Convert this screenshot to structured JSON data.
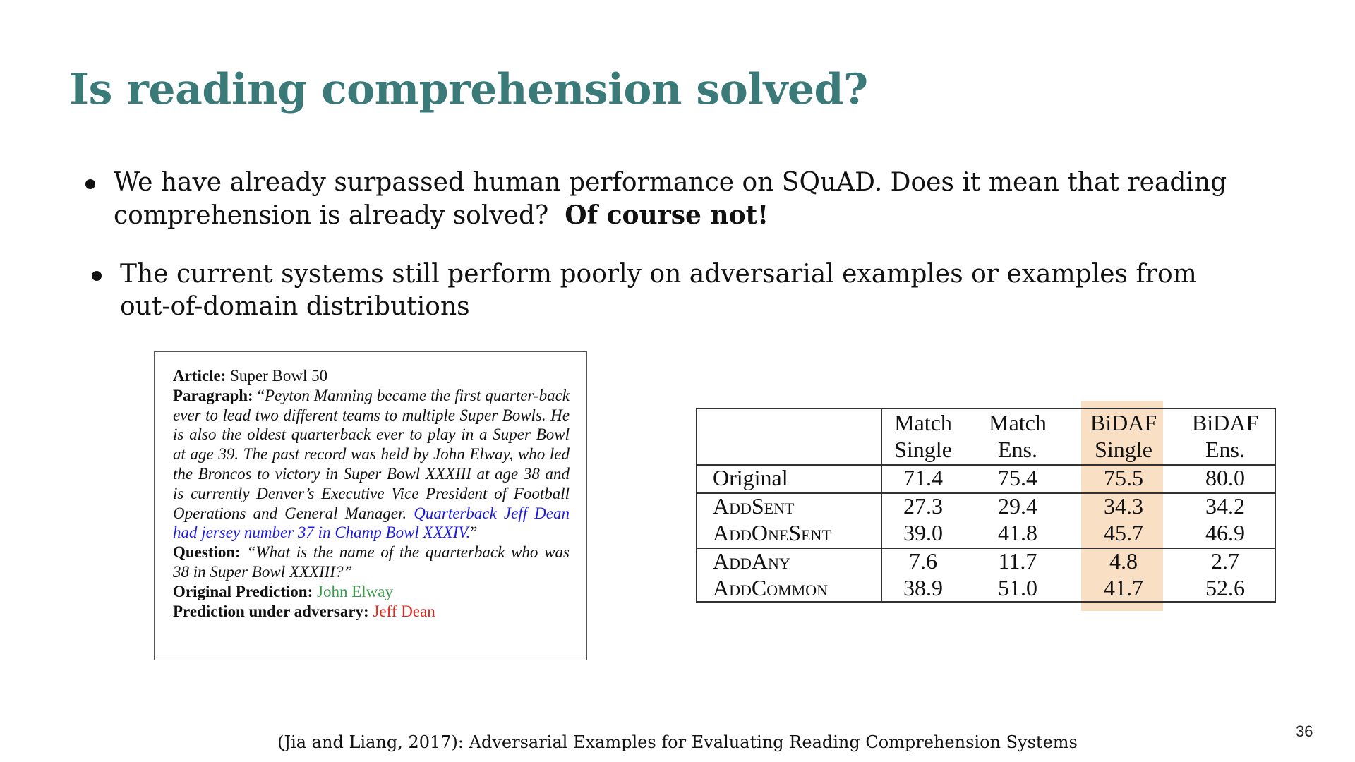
{
  "title": "Is reading comprehension solved?",
  "bullets": [
    {
      "text": "We have already surpassed human performance on SQuAD. Does it mean that reading comprehension is already solved?",
      "emphasis": "Of course not!"
    },
    {
      "text": "The current systems still perform poorly on adversarial examples or examples from out-of-domain distributions"
    }
  ],
  "example": {
    "article_label": "Article:",
    "article": "Super Bowl 50",
    "paragraph_label": "Paragraph:",
    "paragraph_open": "“",
    "paragraph": "Peyton Manning became the first quarter-back ever to lead two different teams to multiple Super Bowls. He is also the oldest quarterback ever to play in a Super Bowl at age 39. The past record was held by John Elway, who led the Broncos to victory in Super Bowl XXXIII at age 38 and is currently Denver’s Executive Vice President of Football Operations and General Manager.",
    "adversarial_sentence": "Quarterback Jeff Dean had jersey number 37 in Champ Bowl XXXIV.",
    "paragraph_close": "”",
    "question_label": "Question:",
    "question": "“What is the name of the quarterback who was 38 in Super Bowl XXXIII?”",
    "original_prediction_label": "Original Prediction:",
    "original_prediction": "John Elway",
    "adversary_prediction_label": "Prediction under adversary:",
    "adversary_prediction": "Jeff Dean"
  },
  "results_table": {
    "headers": [
      [
        "Match",
        "Single"
      ],
      [
        "Match",
        "Ens."
      ],
      [
        "BiDAF",
        "Single"
      ],
      [
        "BiDAF",
        "Ens."
      ]
    ],
    "rows": [
      {
        "label": "Original",
        "values": [
          "71.4",
          "75.4",
          "75.5",
          "80.0"
        ]
      },
      {
        "label": "AddSent",
        "values": [
          "27.3",
          "29.4",
          "34.3",
          "34.2"
        ]
      },
      {
        "label": "AddOneSent",
        "values": [
          "39.0",
          "41.8",
          "45.7",
          "46.9"
        ]
      },
      {
        "label": "AddAny",
        "values": [
          "7.6",
          "11.7",
          "4.8",
          "2.7"
        ]
      },
      {
        "label": "AddCommon",
        "values": [
          "38.9",
          "51.0",
          "41.7",
          "52.6"
        ]
      }
    ],
    "highlight_color": "#f9dfc4"
  },
  "citation": "(Jia and Liang, 2017): Adversarial Examples for Evaluating Reading Comprehension Systems",
  "page_number": "36",
  "colors": {
    "title": "#3a7a78",
    "adversarial_text": "#1a1ae0",
    "original_prediction": "#3a9a4a",
    "adversary_prediction": "#e0281c"
  }
}
